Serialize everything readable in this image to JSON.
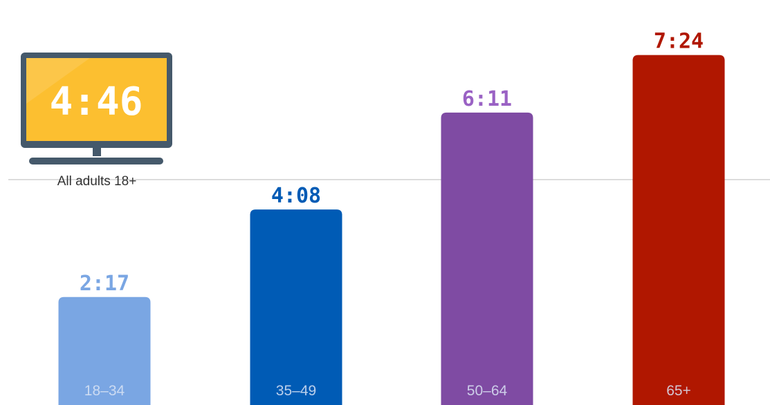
{
  "chart_data": {
    "type": "bar",
    "categories": [
      "18–34",
      "35–49",
      "50–64",
      "65+"
    ],
    "values": [
      137,
      248,
      371,
      444
    ],
    "value_labels": [
      "2:17",
      "4:08",
      "6:11",
      "7:24"
    ],
    "colors": [
      "#7aa6e3",
      "#005bb5",
      "#7f4ba3",
      "#b01700"
    ],
    "value_label_colors": [
      "#7aa6e3",
      "#005bb5",
      "#9a62c4",
      "#b01700"
    ],
    "ylim": [
      0,
      470
    ],
    "grid": false,
    "reference_line": {
      "label": "All adults 18+",
      "value": 286,
      "display": "4:46"
    }
  },
  "icons": {
    "tv": "tv-icon"
  },
  "colors": {
    "tv_frame": "#45596b",
    "tv_screen": "#fcbf30",
    "tick_label": "#dbe4f5",
    "reference_line": "#d0d0d0"
  }
}
